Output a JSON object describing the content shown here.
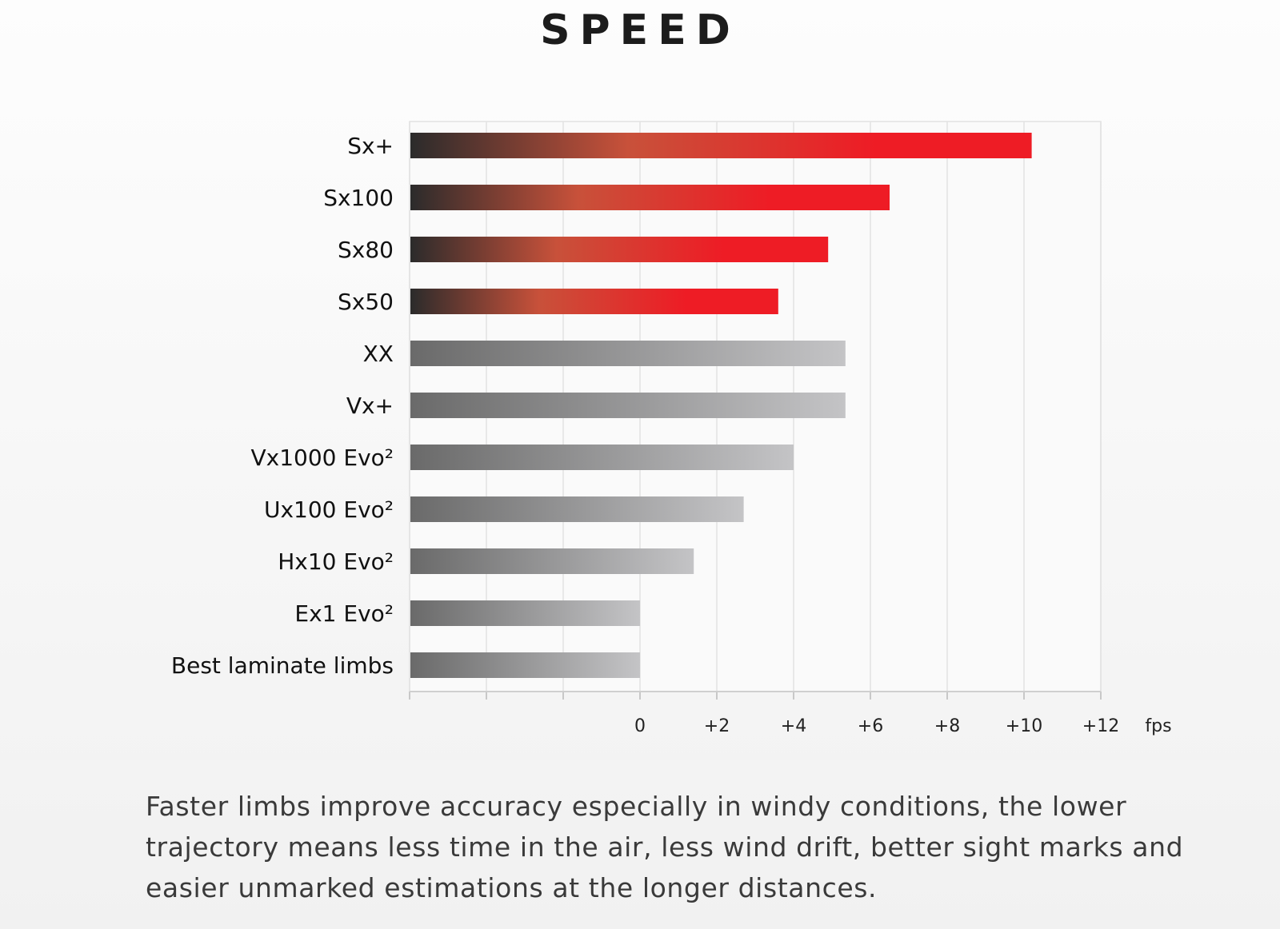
{
  "title": "SPEED",
  "description": "Faster limbs improve accuracy especially in windy conditions, the lower trajectory means less time in the air, less wind drift, better sight marks and easier unmarked estimations at the longer distances.",
  "colors": {
    "red_series_start": "#2b2b2b",
    "red_series_end": "#ee1c25",
    "grey_series_start": "#6a6a6a",
    "grey_series_end": "#c4c4c6",
    "grid": "#e2e2e2"
  },
  "chart_data": {
    "type": "bar",
    "orientation": "horizontal",
    "title": "SPEED",
    "unit": "fps",
    "categories": [
      "Sx+",
      "Sx100",
      "Sx80",
      "Sx50",
      "XX",
      "Vx+",
      "Vx1000 Evo²",
      "Ux100 Evo²",
      "Hx10 Evo²",
      "Ex1 Evo²",
      "Best laminate limbs"
    ],
    "values": [
      10.2,
      6.5,
      4.9,
      3.6,
      5.35,
      5.35,
      4.0,
      2.7,
      1.4,
      0,
      0
    ],
    "bar_style": [
      "red",
      "red",
      "red",
      "red",
      "grey",
      "grey",
      "grey",
      "grey",
      "grey",
      "grey",
      "grey"
    ],
    "xlim": [
      -6,
      12
    ],
    "xticks": [
      0,
      2,
      4,
      6,
      8,
      10,
      12
    ],
    "xtick_labels": [
      "0",
      "+2",
      "+4",
      "+6",
      "+8",
      "+10",
      "+12"
    ],
    "grid": true
  }
}
